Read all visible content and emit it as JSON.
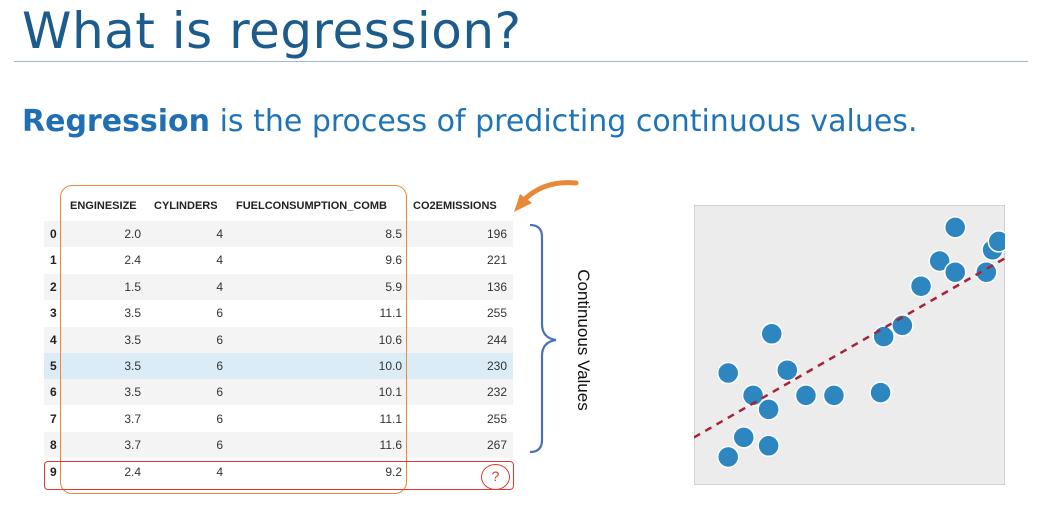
{
  "slide": {
    "title": "What is regression?",
    "subtitle_bold": "Regression",
    "subtitle_rest": " is the process of predicting continuous values.",
    "side_label": "Continuous Values"
  },
  "table": {
    "columns": [
      "ENGINESIZE",
      "CYLINDERS",
      "FUELCONSUMPTION_COMB",
      "CO2EMISSIONS"
    ],
    "rows": [
      {
        "index": "0",
        "enginesize": "2.0",
        "cylinders": "4",
        "fuel": "8.5",
        "co2": "196"
      },
      {
        "index": "1",
        "enginesize": "2.4",
        "cylinders": "4",
        "fuel": "9.6",
        "co2": "221"
      },
      {
        "index": "2",
        "enginesize": "1.5",
        "cylinders": "4",
        "fuel": "5.9",
        "co2": "136"
      },
      {
        "index": "3",
        "enginesize": "3.5",
        "cylinders": "6",
        "fuel": "11.1",
        "co2": "255"
      },
      {
        "index": "4",
        "enginesize": "3.5",
        "cylinders": "6",
        "fuel": "10.6",
        "co2": "244"
      },
      {
        "index": "5",
        "enginesize": "3.5",
        "cylinders": "6",
        "fuel": "10.0",
        "co2": "230"
      },
      {
        "index": "6",
        "enginesize": "3.5",
        "cylinders": "6",
        "fuel": "10.1",
        "co2": "232"
      },
      {
        "index": "7",
        "enginesize": "3.7",
        "cylinders": "6",
        "fuel": "11.1",
        "co2": "255"
      },
      {
        "index": "8",
        "enginesize": "3.7",
        "cylinders": "6",
        "fuel": "11.6",
        "co2": "267"
      },
      {
        "index": "9",
        "enginesize": "2.4",
        "cylinders": "4",
        "fuel": "9.2",
        "co2": "?"
      }
    ],
    "highlighted_row_index": 5
  },
  "colors": {
    "title": "#1c5c8c",
    "subtitle": "#1f74b8",
    "column_highlight": "#e8893a",
    "row_highlight": "#e3372e",
    "brace": "#4a72b8",
    "point": "#2e86c1",
    "fit_line": "#a3243b",
    "plot_bg": "#ececec"
  },
  "chart_data": {
    "type": "scatter",
    "title": "",
    "xlabel": "",
    "ylabel": "",
    "xlim": [
      0,
      10
    ],
    "ylim": [
      0,
      10
    ],
    "grid": false,
    "points": [
      {
        "x": 1.1,
        "y": 1.0
      },
      {
        "x": 1.6,
        "y": 1.7
      },
      {
        "x": 2.4,
        "y": 1.4
      },
      {
        "x": 1.1,
        "y": 4.0
      },
      {
        "x": 1.9,
        "y": 3.2
      },
      {
        "x": 2.4,
        "y": 2.7
      },
      {
        "x": 2.5,
        "y": 5.4
      },
      {
        "x": 3.0,
        "y": 4.1
      },
      {
        "x": 3.6,
        "y": 3.2
      },
      {
        "x": 4.5,
        "y": 3.2
      },
      {
        "x": 6.0,
        "y": 3.3
      },
      {
        "x": 6.1,
        "y": 5.3
      },
      {
        "x": 6.7,
        "y": 5.7
      },
      {
        "x": 7.3,
        "y": 7.1
      },
      {
        "x": 7.9,
        "y": 8.0
      },
      {
        "x": 8.4,
        "y": 7.6
      },
      {
        "x": 8.4,
        "y": 9.2
      },
      {
        "x": 9.4,
        "y": 7.6
      },
      {
        "x": 9.6,
        "y": 8.4
      },
      {
        "x": 9.8,
        "y": 8.7
      }
    ],
    "fit_line": {
      "x": [
        0,
        10
      ],
      "y": [
        1.7,
        8.1
      ]
    }
  }
}
